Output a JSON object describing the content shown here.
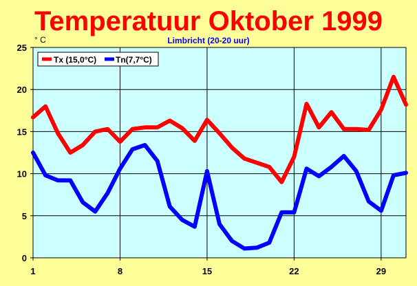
{
  "chart_data": {
    "type": "line",
    "title": "Temperatuur Oktober 1999",
    "subtitle": "Limbricht (20-20 uur)",
    "ylabel": "° C",
    "xlabel": "",
    "x": [
      1,
      2,
      3,
      4,
      5,
      6,
      7,
      8,
      9,
      10,
      11,
      12,
      13,
      14,
      15,
      16,
      17,
      18,
      19,
      20,
      21,
      22,
      23,
      24,
      25,
      26,
      27,
      28,
      29,
      30,
      31
    ],
    "xlim": [
      1,
      31
    ],
    "ylim": [
      0,
      25
    ],
    "xticks": [
      1,
      8,
      15,
      22,
      29
    ],
    "yticks": [
      0,
      5,
      10,
      15,
      20,
      25
    ],
    "grid": true,
    "legend_position": "top-left",
    "series": [
      {
        "name": "Tx (15,0°C)",
        "color": "#ff0000",
        "values": [
          16.7,
          18.0,
          14.8,
          12.5,
          13.4,
          15.0,
          15.3,
          13.8,
          15.3,
          15.5,
          15.5,
          16.3,
          15.4,
          13.9,
          16.4,
          14.8,
          13.1,
          11.8,
          11.3,
          10.8,
          9.0,
          12.0,
          18.3,
          15.5,
          17.3,
          15.3,
          15.3,
          15.2,
          17.6,
          21.5,
          18.2
        ]
      },
      {
        "name": "Tn(7,7°C)",
        "color": "#0000ff",
        "values": [
          12.5,
          9.8,
          9.2,
          9.2,
          6.6,
          5.5,
          7.7,
          10.6,
          12.9,
          13.4,
          11.5,
          6.1,
          4.5,
          3.7,
          10.3,
          4.0,
          2.0,
          1.1,
          1.2,
          1.8,
          5.4,
          5.4,
          10.6,
          9.7,
          10.8,
          12.1,
          10.3,
          6.7,
          5.6,
          9.8,
          10.1
        ]
      }
    ],
    "colors": {
      "background": "#ffff99",
      "plot_background": "#ccffff",
      "title": "#ff0000",
      "subtitle": "#0000ff",
      "grid": "#000000"
    }
  }
}
